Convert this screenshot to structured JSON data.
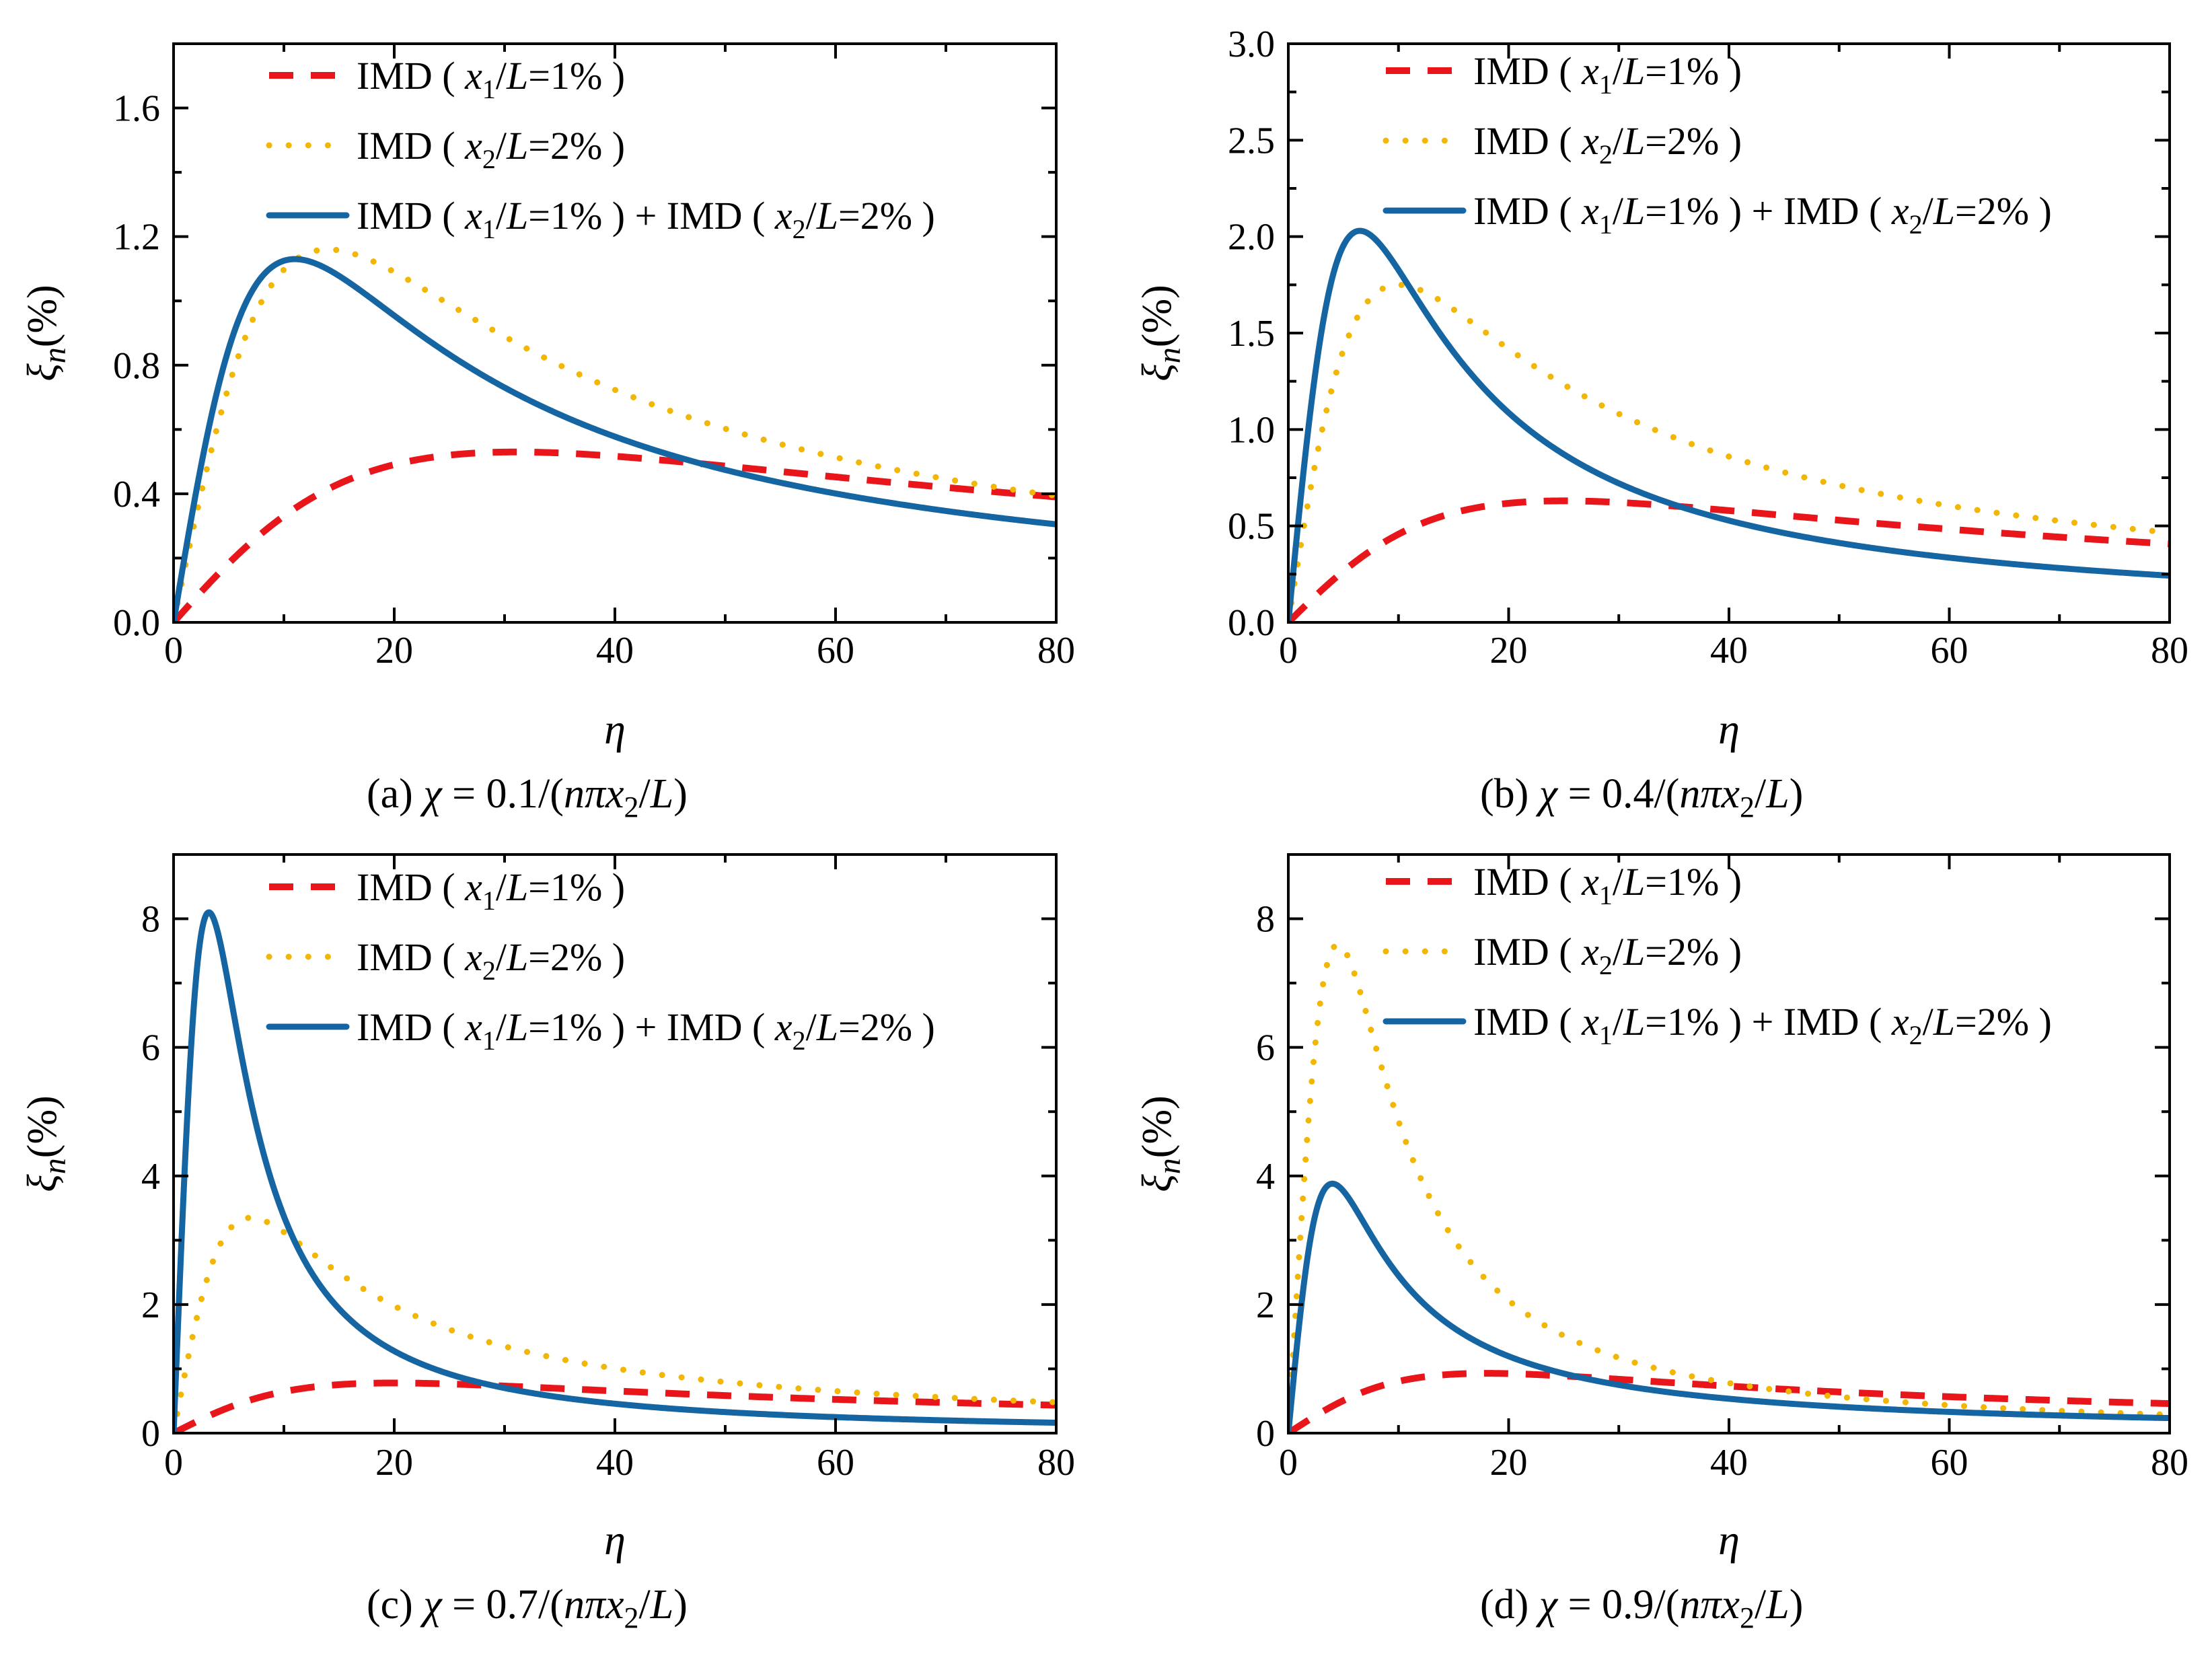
{
  "colors": {
    "x1": "#e8161b",
    "x2": "#f2b705",
    "combined": "#1565a3",
    "axis": "#000000"
  },
  "legend": [
    {
      "key": "x1",
      "prefix": "IMD ( ",
      "var": "x",
      "sub": "1",
      "rest": "/L=1% )"
    },
    {
      "key": "x2",
      "prefix": "IMD ( ",
      "var": "x",
      "sub": "2",
      "rest": "/L=2% )"
    },
    {
      "key": "combined",
      "prefix": "IMD ( ",
      "var": "x",
      "sub": "1",
      "rest": "/L=1% ) + IMD ( ",
      "var2": "x",
      "sub2": "2",
      "rest2": "/L=2% )"
    }
  ],
  "chart_data": [
    {
      "type": "line",
      "panel": "a",
      "caption_label": "(a)",
      "caption_chi": "0.1",
      "xlabel": "η",
      "ylabel": "ξn(%)",
      "xlim": [
        0,
        80
      ],
      "ylim": [
        0,
        1.8
      ],
      "xticks": [
        0,
        20,
        40,
        60,
        80
      ],
      "xtick_labels": [
        "0",
        "20",
        "40",
        "60",
        "80"
      ],
      "yticks": [
        0,
        0.4,
        0.8,
        1.2,
        1.6
      ],
      "ytick_labels": [
        "0.0",
        "0.4",
        "0.8",
        "1.2",
        "1.6"
      ],
      "series": [
        {
          "name": "IMD ( x1/L=1% )",
          "key": "x1",
          "style": "dashed",
          "peak_x": 31,
          "peak_y": 0.53,
          "n": 0.8
        },
        {
          "name": "IMD ( x2/L=2% )",
          "key": "x2",
          "style": "dotted",
          "peak_x": 14,
          "peak_y": 1.16,
          "n": 1.0
        },
        {
          "name": "IMD ( x1/L=1% ) + IMD ( x2/L=2% )",
          "key": "combined",
          "style": "solid",
          "peak_x": 11,
          "peak_y": 1.13,
          "n": 1.0
        }
      ]
    },
    {
      "type": "line",
      "panel": "b",
      "caption_label": "(b)",
      "caption_chi": "0.4",
      "xlabel": "η",
      "ylabel": "ξn(%)",
      "xlim": [
        0,
        80
      ],
      "ylim": [
        0,
        3.0
      ],
      "xticks": [
        0,
        20,
        40,
        60,
        80
      ],
      "xtick_labels": [
        "0",
        "20",
        "40",
        "60",
        "80"
      ],
      "yticks": [
        0,
        0.5,
        1.0,
        1.5,
        2.0,
        2.5,
        3.0
      ],
      "ytick_labels": [
        "0.0",
        "0.5",
        "1.0",
        "1.5",
        "2.0",
        "2.5",
        "3.0"
      ],
      "series": [
        {
          "name": "IMD ( x1/L=1% )",
          "key": "x1",
          "style": "dashed",
          "peak_x": 25,
          "peak_y": 0.63,
          "n": 0.8
        },
        {
          "name": "IMD ( x2/L=2% )",
          "key": "x2",
          "style": "dotted",
          "peak_x": 10,
          "peak_y": 1.75,
          "n": 0.95
        },
        {
          "name": "IMD ( x1/L=1% ) + IMD ( x2/L=2% )",
          "key": "combined",
          "style": "solid",
          "peak_x": 6.5,
          "peak_y": 2.03,
          "n": 1.15
        }
      ]
    },
    {
      "type": "line",
      "panel": "c",
      "caption_label": "(c)",
      "caption_chi": "0.7",
      "xlabel": "η",
      "ylabel": "ξn(%)",
      "xlim": [
        0,
        80
      ],
      "ylim": [
        0,
        9
      ],
      "xticks": [
        0,
        20,
        40,
        60,
        80
      ],
      "xtick_labels": [
        "0",
        "20",
        "40",
        "60",
        "80"
      ],
      "yticks": [
        0,
        2,
        4,
        6,
        8
      ],
      "ytick_labels": [
        "0",
        "2",
        "4",
        "6",
        "8"
      ],
      "series": [
        {
          "name": "IMD ( x1/L=1% )",
          "key": "x1",
          "style": "dashed",
          "peak_x": 20,
          "peak_y": 0.78,
          "n": 0.8
        },
        {
          "name": "IMD ( x2/L=2% )",
          "key": "x2",
          "style": "dotted",
          "peak_x": 7,
          "peak_y": 3.35,
          "n": 1.1
        },
        {
          "name": "IMD ( x1/L=1% ) + IMD ( x2/L=2% )",
          "key": "combined",
          "style": "solid",
          "peak_x": 3.2,
          "peak_y": 8.1,
          "n": 1.5
        }
      ]
    },
    {
      "type": "line",
      "panel": "d",
      "caption_label": "(d)",
      "caption_chi": "0.9",
      "xlabel": "η",
      "ylabel": "ξn(%)",
      "xlim": [
        0,
        80
      ],
      "ylim": [
        0,
        9
      ],
      "xticks": [
        0,
        20,
        40,
        60,
        80
      ],
      "xtick_labels": [
        "0",
        "20",
        "40",
        "60",
        "80"
      ],
      "yticks": [
        0,
        2,
        4,
        6,
        8
      ],
      "ytick_labels": [
        "0",
        "2",
        "4",
        "6",
        "8"
      ],
      "series": [
        {
          "name": "IMD ( x1/L=1% )",
          "key": "x1",
          "style": "dashed",
          "peak_x": 18,
          "peak_y": 0.93,
          "n": 0.85
        },
        {
          "name": "IMD ( x2/L=2% )",
          "key": "x2",
          "style": "dotted",
          "peak_x": 4.5,
          "peak_y": 7.6,
          "n": 1.45
        },
        {
          "name": "IMD ( x1/L=1% ) + IMD ( x2/L=2% )",
          "key": "combined",
          "style": "solid",
          "peak_x": 4.0,
          "peak_y": 3.88,
          "n": 1.2
        }
      ]
    }
  ]
}
